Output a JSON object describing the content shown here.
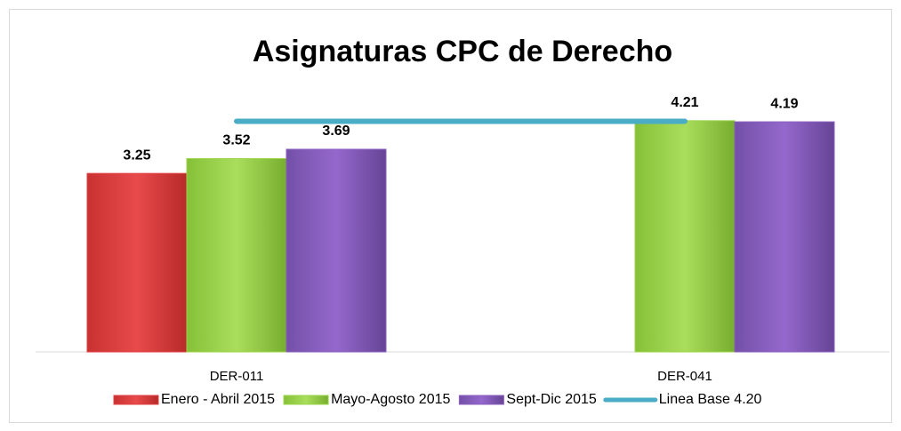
{
  "chart_data": {
    "type": "bar",
    "title": "Asignaturas CPC de Derecho",
    "categories": [
      "DER-011",
      "DER-041"
    ],
    "ylim": [
      0,
      5
    ],
    "series": [
      {
        "name": "Enero - Abril 2015",
        "color": "#e04040",
        "values": [
          3.25,
          null
        ]
      },
      {
        "name": "Mayo-Agosto 2015",
        "color": "#9bd449",
        "values": [
          3.52,
          4.21
        ]
      },
      {
        "name": "Sept-Dic  2015",
        "color": "#8a5fbf",
        "values": [
          3.69,
          4.19
        ]
      },
      {
        "name": "Linea Base 4.20",
        "type": "line",
        "color": "#4bacc6",
        "values": [
          4.2,
          4.2
        ]
      }
    ],
    "legend": "bottom"
  }
}
